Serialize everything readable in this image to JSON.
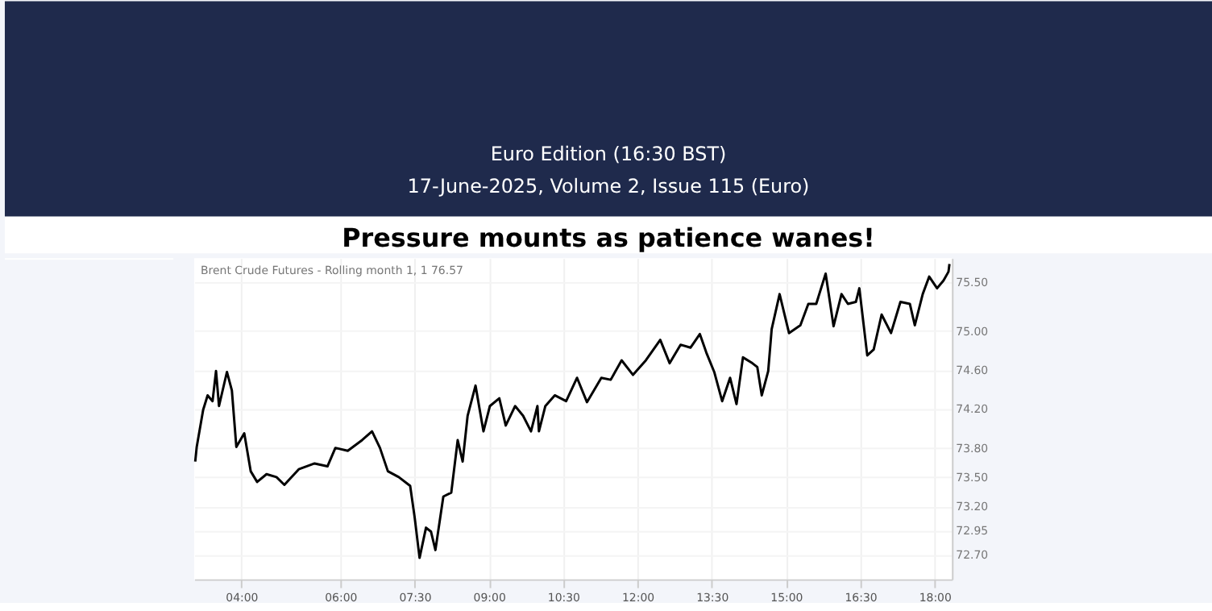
{
  "chart_data": {
    "type": "line",
    "title": "Pressure mounts as patience wanes!",
    "annotations": [
      "Euro Edition (16:30 BST)",
      "17-June-2025, Volume 2, Issue 115 (Euro)",
      "Brent Crude Futures - Rolling month 1, 1  76.57"
    ],
    "x": [
      3.07,
      3.1,
      3.23,
      3.32,
      3.42,
      3.49,
      3.55,
      3.71,
      3.81,
      3.9,
      4.06,
      4.19,
      4.32,
      4.51,
      4.71,
      4.87,
      5.16,
      5.48,
      5.74,
      5.9,
      6.15,
      6.44,
      6.64,
      6.8,
      6.96,
      7.18,
      7.41,
      7.5,
      7.6,
      7.73,
      7.83,
      7.92,
      8.08,
      8.24,
      8.37,
      8.47,
      8.57,
      8.73,
      8.89,
      9.02,
      9.21,
      9.34,
      9.53,
      9.69,
      9.85,
      9.98,
      10.01,
      10.14,
      10.33,
      10.56,
      10.78,
      10.98,
      11.27,
      11.46,
      11.68,
      11.91,
      12.17,
      12.46,
      12.65,
      12.87,
      13.07,
      13.26,
      13.39,
      13.55,
      13.71,
      13.87,
      14.0,
      14.13,
      14.32,
      14.42,
      14.51,
      14.64,
      14.71,
      14.87,
      15.06,
      15.29,
      15.45,
      15.61,
      15.8,
      15.96,
      16.12,
      16.25,
      16.41,
      16.48,
      16.64,
      16.77,
      16.93,
      17.12,
      17.31,
      17.5,
      17.6,
      17.76,
      17.89,
      18.05,
      18.18,
      18.28,
      18.3
    ],
    "series": [
      {
        "color": "#000000",
        "values": [
          73.66,
          73.81,
          74.19,
          74.34,
          74.28,
          74.59,
          74.23,
          74.58,
          74.39,
          73.81,
          73.95,
          73.56,
          73.45,
          73.53,
          73.5,
          73.42,
          73.58,
          73.64,
          73.61,
          73.8,
          73.77,
          73.88,
          73.97,
          73.8,
          73.56,
          73.5,
          73.41,
          73.09,
          72.67,
          72.98,
          72.94,
          72.75,
          73.3,
          73.34,
          73.88,
          73.66,
          74.13,
          74.44,
          73.97,
          74.23,
          74.31,
          74.03,
          74.23,
          74.13,
          73.97,
          74.23,
          73.97,
          74.23,
          74.34,
          74.28,
          74.52,
          74.27,
          74.52,
          74.5,
          74.7,
          74.55,
          74.7,
          74.91,
          74.67,
          74.86,
          74.83,
          74.97,
          74.78,
          74.58,
          74.28,
          74.52,
          74.25,
          74.73,
          74.67,
          74.63,
          74.34,
          74.59,
          75.02,
          75.38,
          74.98,
          75.06,
          75.28,
          75.28,
          75.59,
          75.05,
          75.38,
          75.28,
          75.3,
          75.44,
          74.75,
          74.81,
          75.17,
          74.98,
          75.3,
          75.28,
          75.06,
          75.38,
          75.56,
          75.44,
          75.52,
          75.61,
          75.69
        ]
      }
    ],
    "xlim": [
      3.05,
      18.35
    ],
    "xticks": [
      {
        "value": 4,
        "label": "04:00"
      },
      {
        "value": 6,
        "label": "06:00"
      },
      {
        "value": 7.5,
        "label": "07:30"
      },
      {
        "value": 9,
        "label": "09:00"
      },
      {
        "value": 10.5,
        "label": "10:30"
      },
      {
        "value": 12,
        "label": "12:00"
      },
      {
        "value": 13.5,
        "label": "13:30"
      },
      {
        "value": 15,
        "label": "15:00"
      },
      {
        "value": 16.5,
        "label": "16:30"
      },
      {
        "value": 18,
        "label": "18:00"
      }
    ],
    "ylim": [
      72.45,
      75.75
    ],
    "yticks": [
      {
        "value": 72.7,
        "label": "72.70"
      },
      {
        "value": 72.95,
        "label": "72.95"
      },
      {
        "value": 73.2,
        "label": "73.20"
      },
      {
        "value": 73.5,
        "label": "73.50"
      },
      {
        "value": 73.8,
        "label": "73.80"
      },
      {
        "value": 74.2,
        "label": "74.20"
      },
      {
        "value": 74.6,
        "label": "74.60"
      },
      {
        "value": 75,
        "label": "75.00"
      },
      {
        "value": 75.5,
        "label": "75.50"
      }
    ],
    "grid": true,
    "marker": "none",
    "line_style": "solid"
  }
}
